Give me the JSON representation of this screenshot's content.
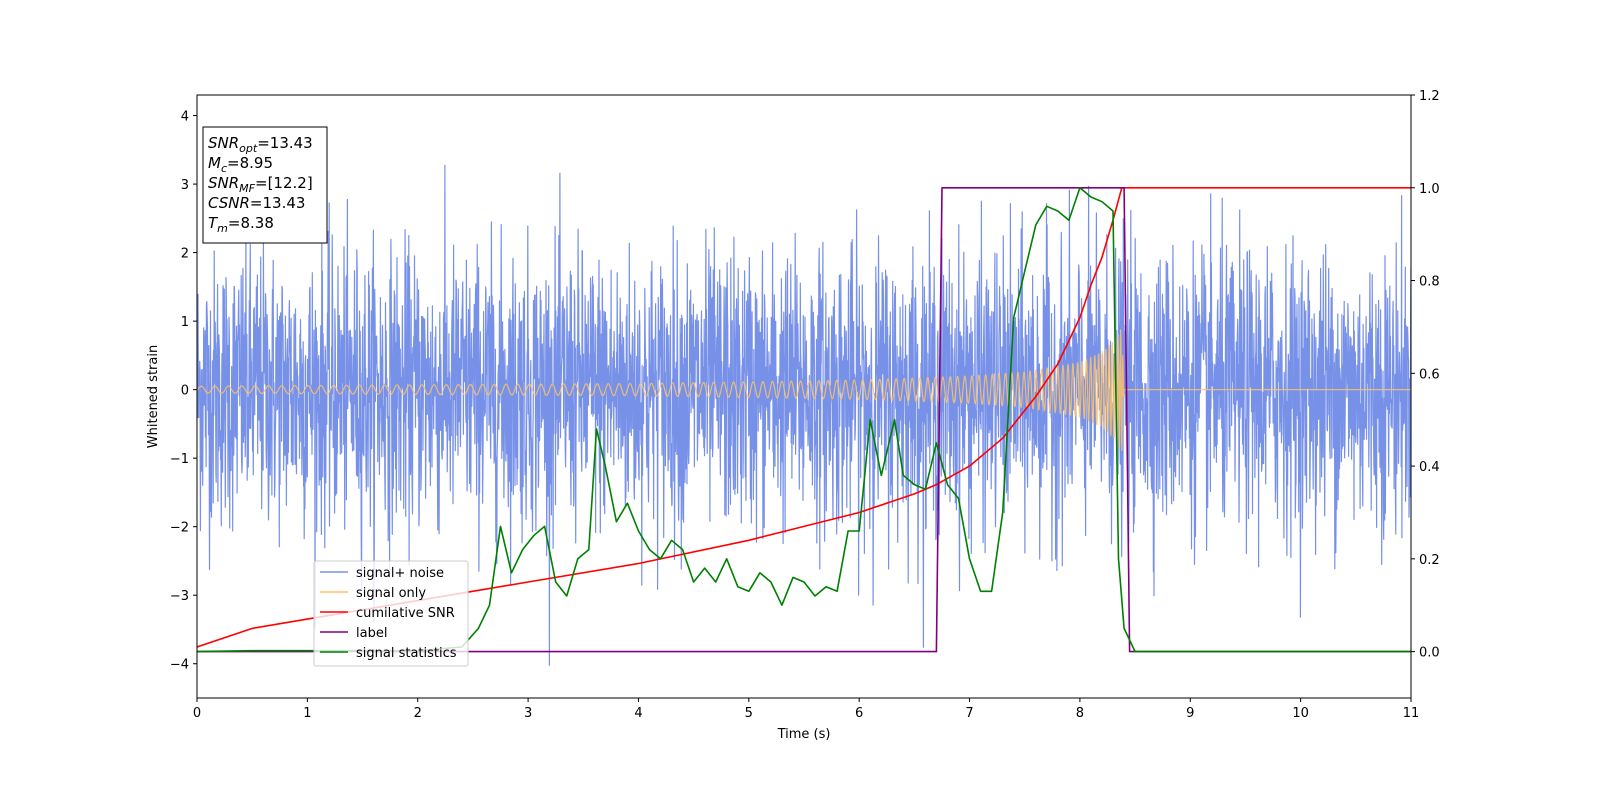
{
  "chart_data": {
    "type": "line",
    "xlabel": "Time (s)",
    "ylabel": "Whitened strain",
    "xlim": [
      0,
      11
    ],
    "ylim_left": [
      -4.5,
      4.3
    ],
    "ylim_right": [
      -0.1,
      1.2
    ],
    "x_ticks": [
      "0",
      "1",
      "2",
      "3",
      "4",
      "5",
      "6",
      "7",
      "8",
      "9",
      "10",
      "11"
    ],
    "y_left_ticks": [
      "4",
      "3",
      "2",
      "1",
      "0",
      "−1",
      "−2",
      "−3",
      "−4"
    ],
    "y_right_ticks": [
      "1.2",
      "1.0",
      "0.8",
      "0.6",
      "0.4",
      "0.2",
      "0.0"
    ],
    "legend_position": "lower-left",
    "info_box": {
      "position": "top-left",
      "lines": [
        {
          "sym": "SNR",
          "sub": "opt",
          "value": "=13.43"
        },
        {
          "sym": "M",
          "sub": "c",
          "value": "=8.95"
        },
        {
          "sym": "SNR",
          "sub": "MF",
          "value": "=[12.2]"
        },
        {
          "sym": "CSNR",
          "sub": "",
          "value": "=13.43"
        },
        {
          "sym": "T",
          "sub": "m",
          "value": "=8.38"
        }
      ]
    },
    "series": [
      {
        "name": "signal+ noise",
        "color": "#7791e8",
        "axis": "left",
        "kind": "noise",
        "sigma": 1.0,
        "x_range": [
          0,
          11
        ]
      },
      {
        "name": "signal only",
        "color": "#ffc266",
        "axis": "left",
        "kind": "chirp",
        "merger_time": 8.38,
        "envelope": {
          "x": [
            0,
            2,
            4,
            6,
            7,
            7.5,
            8,
            8.2,
            8.3,
            8.38,
            8.4,
            11
          ],
          "amp": [
            0.05,
            0.07,
            0.09,
            0.14,
            0.2,
            0.26,
            0.4,
            0.55,
            0.7,
            0.9,
            0.0,
            0.0
          ]
        }
      },
      {
        "name": "cumilative SNR",
        "color": "#ff0000",
        "axis": "right",
        "x": [
          0,
          0.5,
          1,
          2,
          3,
          4,
          5,
          5.5,
          6,
          6.5,
          6.7,
          7,
          7.3,
          7.6,
          7.8,
          8.0,
          8.1,
          8.2,
          8.3,
          8.38,
          8.4,
          11
        ],
        "y": [
          0.01,
          0.05,
          0.07,
          0.11,
          0.15,
          0.19,
          0.24,
          0.27,
          0.3,
          0.34,
          0.36,
          0.4,
          0.46,
          0.55,
          0.62,
          0.72,
          0.79,
          0.85,
          0.93,
          1.0,
          1.0,
          1.0
        ]
      },
      {
        "name": "label",
        "color": "#800080",
        "axis": "right",
        "x": [
          0,
          6.7,
          6.75,
          8.4,
          8.45,
          11
        ],
        "y": [
          0,
          0,
          1.0,
          1.0,
          0,
          0
        ]
      },
      {
        "name": "signal statistics",
        "color": "#008000",
        "axis": "right",
        "x": [
          0,
          0.5,
          1,
          1.5,
          2,
          2.4,
          2.55,
          2.65,
          2.75,
          2.85,
          2.95,
          3.05,
          3.15,
          3.25,
          3.35,
          3.45,
          3.55,
          3.62,
          3.7,
          3.8,
          3.9,
          4.0,
          4.1,
          4.2,
          4.3,
          4.4,
          4.5,
          4.6,
          4.7,
          4.8,
          4.9,
          5.0,
          5.1,
          5.2,
          5.3,
          5.4,
          5.5,
          5.6,
          5.7,
          5.8,
          5.9,
          6.0,
          6.1,
          6.2,
          6.32,
          6.4,
          6.5,
          6.6,
          6.7,
          6.8,
          6.9,
          7.0,
          7.1,
          7.2,
          7.3,
          7.4,
          7.5,
          7.6,
          7.7,
          7.8,
          7.9,
          8.0,
          8.1,
          8.2,
          8.3,
          8.35,
          8.4,
          8.5,
          8.6,
          9,
          10,
          11
        ],
        "y": [
          0,
          0.002,
          0.002,
          0.002,
          0.002,
          0.01,
          0.05,
          0.1,
          0.27,
          0.17,
          0.22,
          0.25,
          0.27,
          0.15,
          0.12,
          0.2,
          0.22,
          0.48,
          0.4,
          0.28,
          0.32,
          0.26,
          0.22,
          0.2,
          0.24,
          0.22,
          0.15,
          0.18,
          0.15,
          0.2,
          0.14,
          0.13,
          0.17,
          0.15,
          0.1,
          0.16,
          0.15,
          0.12,
          0.14,
          0.13,
          0.26,
          0.26,
          0.5,
          0.38,
          0.5,
          0.38,
          0.36,
          0.35,
          0.45,
          0.36,
          0.33,
          0.2,
          0.13,
          0.13,
          0.3,
          0.72,
          0.82,
          0.92,
          0.96,
          0.95,
          0.93,
          1.0,
          0.98,
          0.97,
          0.95,
          0.2,
          0.05,
          0.0,
          0.0,
          0.0,
          0.0,
          0.0
        ]
      }
    ]
  }
}
